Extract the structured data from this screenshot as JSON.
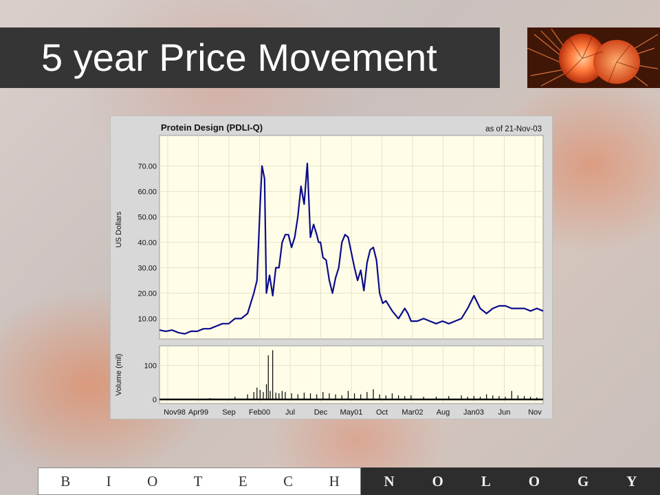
{
  "slide": {
    "title": "5 year Price Movement",
    "footer_left_letters": [
      "B",
      "I",
      "O",
      "T",
      "E",
      "C",
      "H"
    ],
    "footer_right_letters": [
      "N",
      "O",
      "L",
      "O",
      "G",
      "Y"
    ]
  },
  "colors": {
    "title_bar": "#353535",
    "price_line": "#0a0a8c",
    "plot_bg": "#fffde8",
    "volume_bars": "#000000"
  },
  "chart_data": [
    {
      "type": "line",
      "title": "Protein Design (PDLI-Q)",
      "subtitle": "as of 21-Nov-03",
      "xlabel": "",
      "ylabel": "US Dollars",
      "ylim": [
        2,
        82
      ],
      "yticks": [
        "10.00",
        "20.00",
        "30.00",
        "40.00",
        "50.00",
        "60.00",
        "70.00"
      ],
      "xticks": [
        "Nov98",
        "Apr99",
        "Sep",
        "Feb00",
        "Jul",
        "Dec",
        "May01",
        "Oct",
        "Mar02",
        "Aug",
        "Jan03",
        "Jun",
        "Nov"
      ],
      "grid": true,
      "series": [
        {
          "x": [
            0,
            1,
            2,
            3,
            4,
            5,
            6,
            7,
            8,
            9,
            10,
            11,
            12,
            13,
            14,
            15,
            15.5,
            16,
            16.3,
            16.7,
            17,
            17.5,
            18,
            18.5,
            19,
            19.5,
            20,
            20.5,
            21,
            21.5,
            22,
            22.5,
            23,
            23.5,
            24,
            24.5,
            25,
            25.3,
            25.6,
            26,
            26.5,
            27,
            27.5,
            28,
            28.5,
            29,
            29.5,
            30,
            30.5,
            31,
            31.5,
            32,
            32.5,
            33,
            33.5,
            34,
            34.5,
            35,
            35.5,
            36,
            37,
            38,
            38.5,
            39,
            39.5,
            40,
            41,
            42,
            43,
            44,
            45,
            46,
            47,
            48,
            49,
            50,
            51,
            52,
            53,
            54,
            54.5,
            55,
            56,
            57,
            58,
            59,
            60,
            61
          ],
          "y": [
            5.5,
            5,
            5.5,
            4.5,
            4,
            5,
            5,
            6,
            6,
            7,
            8,
            8,
            10,
            10,
            12,
            20,
            25,
            55,
            70,
            65,
            20,
            27,
            19,
            30,
            30,
            40,
            43,
            43,
            38,
            42,
            50,
            62,
            55,
            71,
            42,
            47,
            43,
            40,
            40,
            34,
            33,
            25,
            20,
            26,
            30,
            40,
            43,
            42,
            36,
            30,
            25,
            29,
            21,
            32,
            37,
            38,
            33,
            20,
            16,
            17,
            13,
            10,
            12,
            14,
            12,
            9,
            9,
            10,
            9,
            8,
            9,
            8,
            9,
            10,
            14,
            19,
            14,
            12,
            14,
            15,
            15,
            15,
            14,
            14,
            14,
            13,
            14,
            13
          ]
        }
      ]
    },
    {
      "type": "bar",
      "title": "",
      "xlabel": "",
      "ylabel": "Volume (mil)",
      "ylim": [
        0,
        150
      ],
      "yticks": [
        "0",
        "100"
      ],
      "xticks": [
        "Nov98",
        "Apr99",
        "Sep",
        "Feb00",
        "Jul",
        "Dec",
        "May01",
        "Oct",
        "Mar02",
        "Aug",
        "Jan03",
        "Jun",
        "Nov"
      ],
      "grid": true,
      "series": [
        {
          "name": "",
          "x": [
            4,
            8,
            12,
            14,
            15,
            15.5,
            16,
            16.5,
            17,
            17.3,
            17.6,
            18,
            18.5,
            19,
            19.5,
            20,
            21,
            22,
            23,
            24,
            25,
            26,
            27,
            28,
            29,
            30,
            31,
            32,
            33,
            34,
            35,
            36,
            37,
            38,
            39,
            40,
            42,
            44,
            46,
            48,
            49,
            50,
            51,
            52,
            53,
            54,
            55,
            56,
            57,
            58,
            59,
            60
          ],
          "values": [
            2,
            4,
            8,
            15,
            22,
            35,
            28,
            22,
            45,
            130,
            25,
            145,
            20,
            18,
            25,
            22,
            18,
            15,
            20,
            18,
            15,
            22,
            18,
            15,
            12,
            25,
            18,
            15,
            22,
            30,
            15,
            12,
            18,
            12,
            10,
            12,
            8,
            8,
            10,
            12,
            8,
            10,
            8,
            15,
            12,
            10,
            8,
            25,
            12,
            10,
            8,
            6
          ]
        }
      ]
    }
  ]
}
